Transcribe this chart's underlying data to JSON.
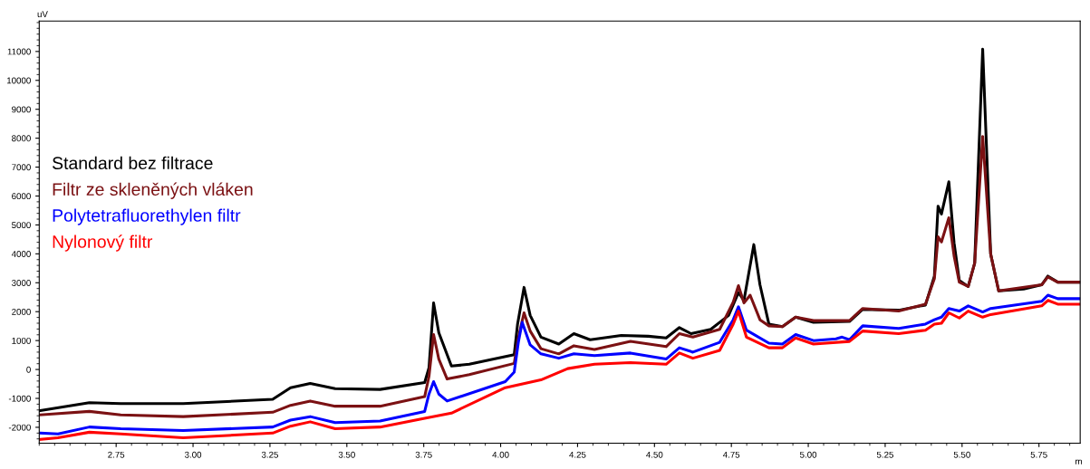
{
  "chart_data": {
    "type": "line",
    "xlabel": "m",
    "ylabel": "uV",
    "xlim": [
      2.5,
      5.884
    ],
    "ylim": [
      -2550,
      12050
    ],
    "xticks": [
      {
        "value": 2.75,
        "label": "2.75"
      },
      {
        "value": 3.0,
        "label": "3.00"
      },
      {
        "value": 3.25,
        "label": "3.25"
      },
      {
        "value": 3.5,
        "label": "3.50"
      },
      {
        "value": 3.75,
        "label": "3.75"
      },
      {
        "value": 4.0,
        "label": "4.00"
      },
      {
        "value": 4.25,
        "label": "4.25"
      },
      {
        "value": 4.5,
        "label": "4.50"
      },
      {
        "value": 4.75,
        "label": "4.75"
      },
      {
        "value": 5.0,
        "label": "5.00"
      },
      {
        "value": 5.25,
        "label": "5.25"
      },
      {
        "value": 5.5,
        "label": "5.50"
      },
      {
        "value": 5.75,
        "label": "5.75"
      }
    ],
    "yticks": [
      -2000,
      -1000,
      0,
      1000,
      2000,
      3000,
      4000,
      5000,
      6000,
      7000,
      8000,
      9000,
      10000,
      11000
    ],
    "grid": false,
    "legend": "left",
    "marker": "none",
    "line_style": "solid",
    "series": [
      {
        "name": "Standard bez filtrace",
        "color": "#000000",
        "x": [
          2.503,
          2.663,
          2.765,
          2.968,
          3.259,
          3.317,
          3.381,
          3.462,
          3.608,
          3.753,
          3.767,
          3.782,
          3.799,
          3.84,
          3.898,
          4.044,
          4.055,
          4.076,
          4.096,
          4.131,
          4.189,
          4.238,
          4.291,
          4.392,
          4.48,
          4.538,
          4.581,
          4.619,
          4.683,
          4.741,
          4.773,
          4.791,
          4.823,
          4.843,
          4.872,
          4.916,
          4.959,
          5.017,
          5.134,
          5.177,
          5.294,
          5.381,
          5.41,
          5.422,
          5.433,
          5.457,
          5.474,
          5.491,
          5.52,
          5.541,
          5.567,
          5.593,
          5.619,
          5.7,
          5.759,
          5.779,
          5.811,
          5.884
        ],
        "values": [
          -1420,
          -1150,
          -1180,
          -1180,
          -1030,
          -630,
          -480,
          -660,
          -690,
          -450,
          60,
          2300,
          1270,
          120,
          180,
          510,
          1570,
          2840,
          1870,
          1120,
          880,
          1240,
          1030,
          1180,
          1150,
          1090,
          1450,
          1240,
          1390,
          1870,
          2660,
          2390,
          4320,
          2930,
          1570,
          1480,
          1810,
          1630,
          1660,
          2080,
          2050,
          2230,
          3230,
          5650,
          5380,
          6490,
          4380,
          3080,
          2870,
          3680,
          11080,
          3990,
          2720,
          2780,
          2930,
          3230,
          3020,
          3020
        ]
      },
      {
        "name": "Filtr ze skleněných vláken",
        "color": "#7b1113",
        "x": [
          2.503,
          2.663,
          2.765,
          2.968,
          3.259,
          3.317,
          3.381,
          3.462,
          3.608,
          3.753,
          3.767,
          3.782,
          3.799,
          3.826,
          3.898,
          4.044,
          4.058,
          4.076,
          4.096,
          4.131,
          4.189,
          4.238,
          4.305,
          4.422,
          4.538,
          4.581,
          4.625,
          4.712,
          4.756,
          4.773,
          4.791,
          4.811,
          4.843,
          4.872,
          4.916,
          4.959,
          5.017,
          5.134,
          5.177,
          5.294,
          5.381,
          5.41,
          5.422,
          5.433,
          5.457,
          5.474,
          5.491,
          5.52,
          5.541,
          5.567,
          5.593,
          5.619,
          5.759,
          5.779,
          5.811,
          5.884
        ],
        "values": [
          -1570,
          -1450,
          -1570,
          -1630,
          -1480,
          -1240,
          -1090,
          -1270,
          -1270,
          -940,
          -240,
          1210,
          360,
          -330,
          -180,
          210,
          1120,
          1960,
          1330,
          720,
          540,
          820,
          690,
          970,
          790,
          1240,
          1120,
          1390,
          2330,
          2900,
          2300,
          2570,
          1720,
          1510,
          1480,
          1810,
          1690,
          1690,
          2110,
          2020,
          2260,
          3140,
          4590,
          4410,
          5250,
          3930,
          3020,
          2870,
          3680,
          8060,
          3990,
          2720,
          2930,
          3200,
          3020,
          3020
        ]
      },
      {
        "name": "Polytetrafluorethylen filtr",
        "color": "#0000ff",
        "x": [
          2.503,
          2.561,
          2.663,
          2.765,
          2.968,
          3.259,
          3.317,
          3.381,
          3.462,
          3.608,
          3.753,
          3.767,
          3.782,
          3.799,
          3.826,
          4.015,
          4.044,
          4.058,
          4.07,
          4.096,
          4.131,
          4.189,
          4.238,
          4.305,
          4.422,
          4.538,
          4.581,
          4.625,
          4.712,
          4.756,
          4.773,
          4.799,
          4.872,
          4.916,
          4.959,
          5.017,
          5.09,
          5.11,
          5.134,
          5.177,
          5.294,
          5.381,
          5.41,
          5.433,
          5.457,
          5.491,
          5.52,
          5.567,
          5.593,
          5.759,
          5.779,
          5.811,
          5.884
        ],
        "values": [
          -2200,
          -2230,
          -1990,
          -2050,
          -2110,
          -1990,
          -1750,
          -1630,
          -1840,
          -1780,
          -1450,
          -850,
          -420,
          -850,
          -1090,
          -420,
          -90,
          970,
          1630,
          850,
          540,
          390,
          540,
          480,
          570,
          360,
          750,
          600,
          940,
          1720,
          2170,
          1360,
          910,
          880,
          1210,
          1000,
          1060,
          1120,
          1030,
          1510,
          1420,
          1570,
          1720,
          1810,
          2110,
          2020,
          2200,
          1990,
          2110,
          2360,
          2570,
          2450,
          2450
        ]
      },
      {
        "name": "Nylonový filtr",
        "color": "#ff0000",
        "x": [
          2.503,
          2.561,
          2.663,
          2.765,
          2.968,
          3.259,
          3.317,
          3.381,
          3.462,
          3.608,
          3.753,
          3.84,
          4.015,
          4.131,
          4.218,
          4.305,
          4.422,
          4.538,
          4.581,
          4.625,
          4.712,
          4.756,
          4.773,
          4.799,
          4.872,
          4.916,
          4.959,
          5.017,
          5.134,
          5.177,
          5.294,
          5.381,
          5.41,
          5.433,
          5.457,
          5.491,
          5.52,
          5.567,
          5.593,
          5.759,
          5.779,
          5.811,
          5.884
        ],
        "values": [
          -2420,
          -2360,
          -2170,
          -2230,
          -2360,
          -2200,
          -1960,
          -1810,
          -2050,
          -1990,
          -1690,
          -1510,
          -630,
          -360,
          30,
          180,
          240,
          180,
          570,
          390,
          660,
          1570,
          2020,
          1120,
          750,
          750,
          1090,
          880,
          970,
          1330,
          1240,
          1360,
          1570,
          1600,
          1960,
          1780,
          2020,
          1810,
          1900,
          2200,
          2390,
          2260,
          2260
        ]
      }
    ]
  }
}
